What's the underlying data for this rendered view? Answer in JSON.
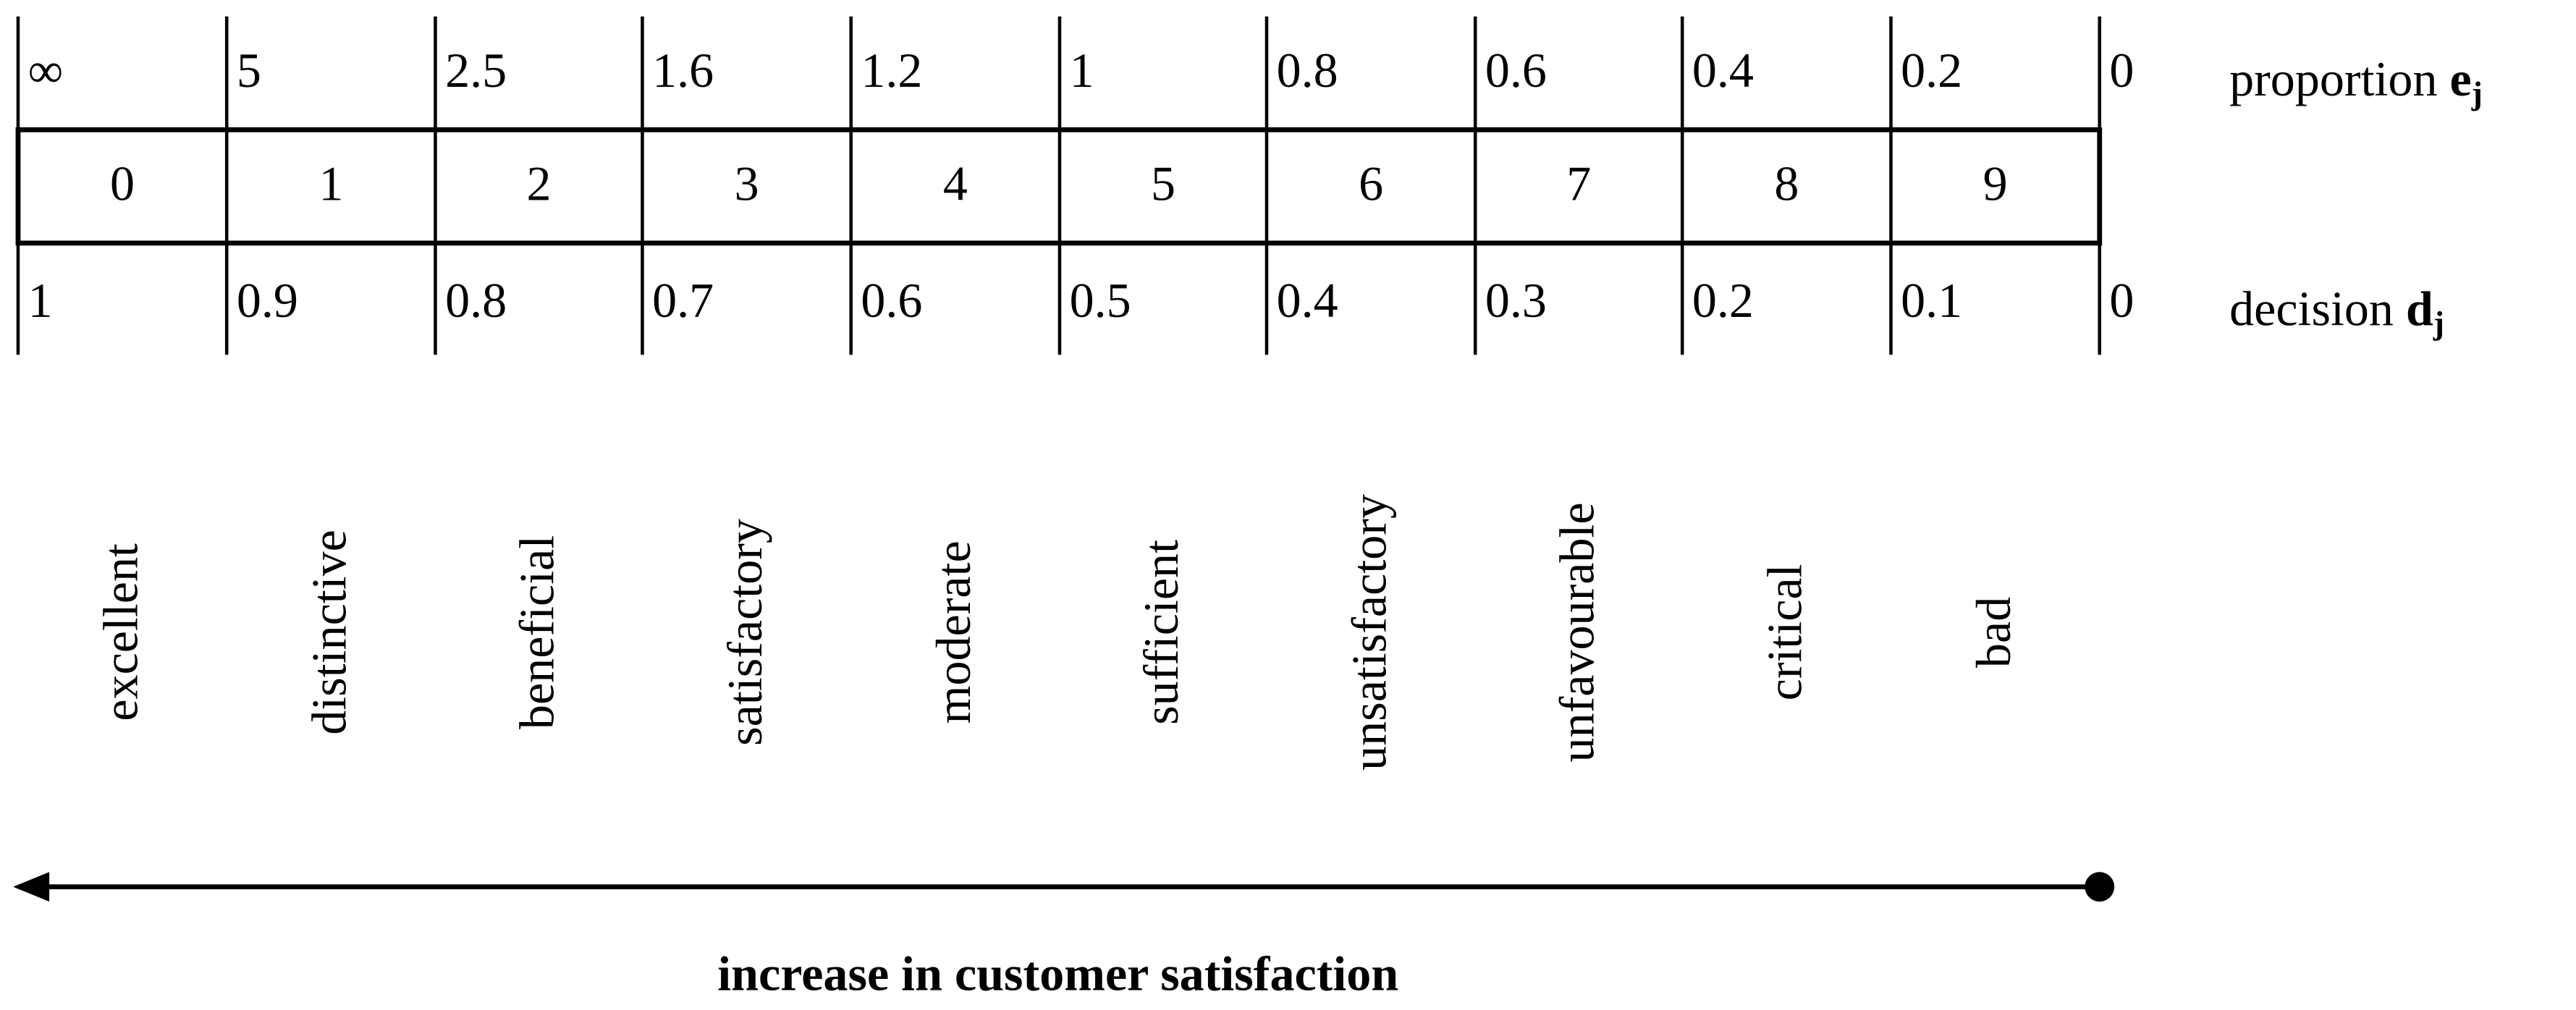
{
  "proportion_row": {
    "label": {
      "text": "proportion",
      "symbol": "e",
      "subscript": "j"
    },
    "values": [
      "∞",
      5,
      2.5,
      1.6,
      1.2,
      1,
      0.8,
      0.6,
      0.4,
      0.2,
      0
    ]
  },
  "index_row": {
    "values": [
      0,
      1,
      2,
      3,
      4,
      5,
      6,
      7,
      8,
      9
    ]
  },
  "decision_row": {
    "label": {
      "text": "decision",
      "symbol": "d",
      "subscript": "j"
    },
    "values": [
      1,
      0.9,
      0.8,
      0.7,
      0.6,
      0.5,
      0.4,
      0.3,
      0.2,
      0.1,
      0
    ]
  },
  "ratings": [
    "excellent",
    "distinctive",
    "beneficial",
    "satisfactory",
    "moderate",
    "sufficient",
    "unsatisfactory",
    "unfavourable",
    "critical",
    "bad"
  ],
  "arrow": {
    "caption": "increase in customer satisfaction"
  }
}
